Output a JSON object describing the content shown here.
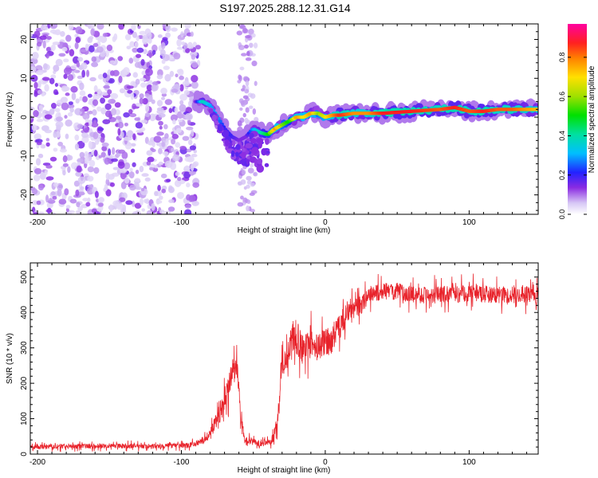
{
  "title": "S197.2025.288.12.31.G14",
  "colors": {
    "snr_line": "#e8232b",
    "axis": "#000000"
  },
  "colorbar": {
    "label": "Normalized spectral amplitude",
    "ticks": [
      "0.0",
      "0.2",
      "0.4",
      "0.6",
      "0.8"
    ],
    "range": [
      0,
      0.97
    ]
  },
  "chart_data": [
    {
      "type": "heatmap",
      "name": "spectrogram",
      "xlabel": "Height of straight line (km)",
      "ylabel": "Frequency (Hz)",
      "xlim": [
        -205,
        148
      ],
      "ylim": [
        -25,
        24
      ],
      "x_ticks": [
        "-200",
        "-100",
        "0",
        "100"
      ],
      "y_ticks": [
        "-20",
        "-10",
        "0",
        "10",
        "20"
      ],
      "noise_region_km": [
        -205,
        -88
      ],
      "signal_ridge": {
        "height_km": [
          -90,
          -85,
          -80,
          -75,
          -70,
          -65,
          -60,
          -55,
          -50,
          -45,
          -40,
          -35,
          -30,
          -25,
          -20,
          -15,
          -10,
          -5,
          0,
          5,
          10,
          20,
          30,
          40,
          60,
          80,
          90,
          100,
          110,
          120,
          130,
          148
        ],
        "frequency_hz": [
          4,
          4,
          3,
          0,
          -3,
          -5,
          -6,
          -5,
          -3,
          -4,
          -4.5,
          -3,
          -2,
          -1,
          0,
          0,
          1,
          1,
          0,
          0.5,
          0.5,
          1,
          1,
          1,
          1.5,
          2,
          2.5,
          1.5,
          1.5,
          2,
          2,
          2
        ],
        "amplitude": [
          0.15,
          0.4,
          0.3,
          0.3,
          0.2,
          0.2,
          0.15,
          0.15,
          0.3,
          0.4,
          0.5,
          0.8,
          0.6,
          0.5,
          0.8,
          0.7,
          0.8,
          0.6,
          0.7,
          0.8,
          0.9,
          0.8,
          0.8,
          0.9,
          0.9,
          0.85,
          0.9,
          0.85,
          0.9,
          0.85,
          0.85,
          0.75
        ]
      }
    },
    {
      "type": "line",
      "name": "snr",
      "xlabel": "Height of straight line (km)",
      "ylabel": "SNR (10 * v/v)",
      "xlim": [
        -205,
        148
      ],
      "ylim": [
        0,
        540
      ],
      "x_ticks": [
        "-200",
        "-100",
        "0",
        "100"
      ],
      "y_ticks": [
        "0",
        "100",
        "200",
        "300",
        "400",
        "500"
      ],
      "series": [
        {
          "name": "SNR",
          "x": [
            -205,
            -180,
            -150,
            -120,
            -95,
            -85,
            -78,
            -72,
            -68,
            -64,
            -61,
            -59,
            -56,
            -50,
            -44,
            -38,
            -35,
            -32,
            -30,
            -27,
            -24,
            -20,
            -15,
            -10,
            -5,
            0,
            5,
            10,
            15,
            20,
            25,
            30,
            40,
            50,
            60,
            80,
            100,
            120,
            148
          ],
          "values": [
            20,
            22,
            24,
            22,
            25,
            35,
            70,
            130,
            180,
            230,
            250,
            110,
            40,
            35,
            30,
            32,
            60,
            150,
            280,
            250,
            330,
            330,
            290,
            310,
            300,
            320,
            320,
            360,
            400,
            410,
            420,
            450,
            460,
            460,
            450,
            450,
            455,
            450,
            450
          ],
          "noise": [
            10,
            10,
            10,
            10,
            10,
            12,
            25,
            45,
            55,
            60,
            50,
            30,
            15,
            15,
            12,
            12,
            25,
            60,
            70,
            70,
            70,
            70,
            60,
            60,
            55,
            55,
            55,
            50,
            45,
            40,
            40,
            35,
            35,
            35,
            35,
            35,
            35,
            35,
            35
          ]
        }
      ]
    }
  ]
}
